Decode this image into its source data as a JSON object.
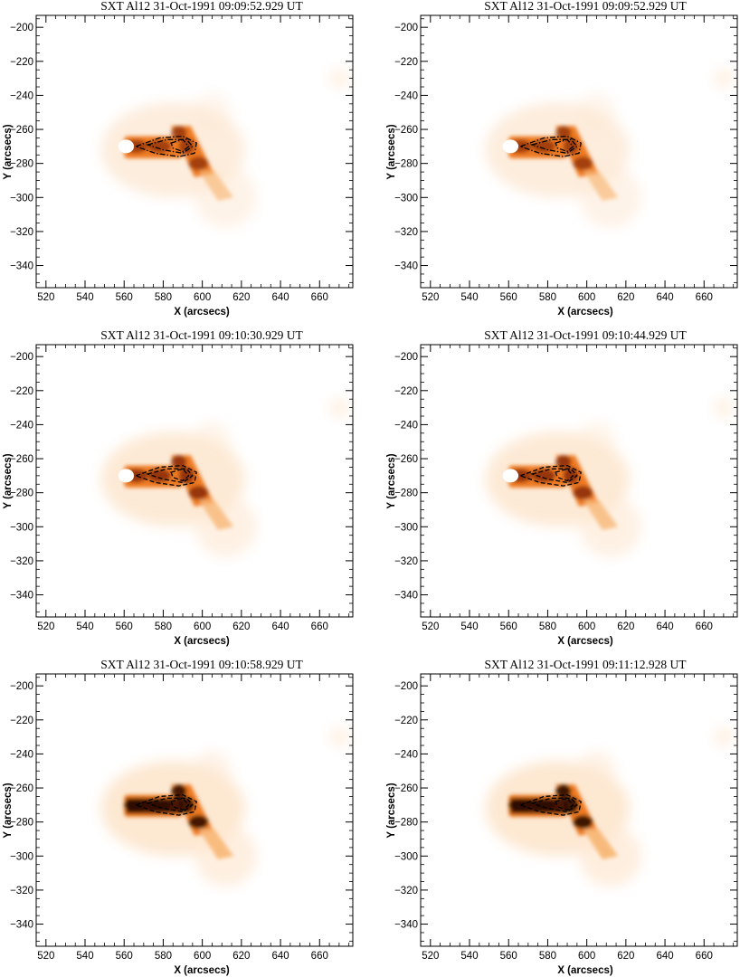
{
  "colors": {
    "background": "#ffffff",
    "colormap": [
      "#ffffff",
      "#fde8d2",
      "#f8b878",
      "#ee7a22",
      "#c84a0c",
      "#7a1e06",
      "#2a0800"
    ],
    "contour": "#000000",
    "saturated": "#ffffff"
  },
  "axes": {
    "x_label": "X (arcsecs)",
    "y_label": "Y (arcsecs)",
    "x_range": [
      515,
      677
    ],
    "y_range": [
      -353,
      -193
    ],
    "x_ticks": [
      520,
      540,
      560,
      580,
      600,
      620,
      640,
      660
    ],
    "y_ticks": [
      -200,
      -220,
      -240,
      -260,
      -280,
      -300,
      -320,
      -340
    ]
  },
  "panels": [
    {
      "title": "SXT Al12   31-Oct-1991 09:09:52.929 UT",
      "intensity": 0.85,
      "saturated": true,
      "contour_style": "dash-dot"
    },
    {
      "title": "SXT Al12   31-Oct-1991 09:09:52.929 UT",
      "intensity": 0.85,
      "saturated": true,
      "contour_style": "dash-dot"
    },
    {
      "title": "SXT Al12   31-Oct-1991 09:10:30.929 UT",
      "intensity": 1.0,
      "saturated": true,
      "contour_style": "dashed"
    },
    {
      "title": "SXT Al12   31-Oct-1991 09:10:44.929 UT",
      "intensity": 1.0,
      "saturated": true,
      "contour_style": "dashed"
    },
    {
      "title": "SXT Al12   31-Oct-1991 09:10:58.929 UT",
      "intensity": 1.15,
      "saturated": false,
      "contour_style": "dashed"
    },
    {
      "title": "SXT Al12   31-Oct-1991 09:11:12.928 UT",
      "intensity": 1.2,
      "saturated": false,
      "contour_style": "dashed"
    }
  ]
}
